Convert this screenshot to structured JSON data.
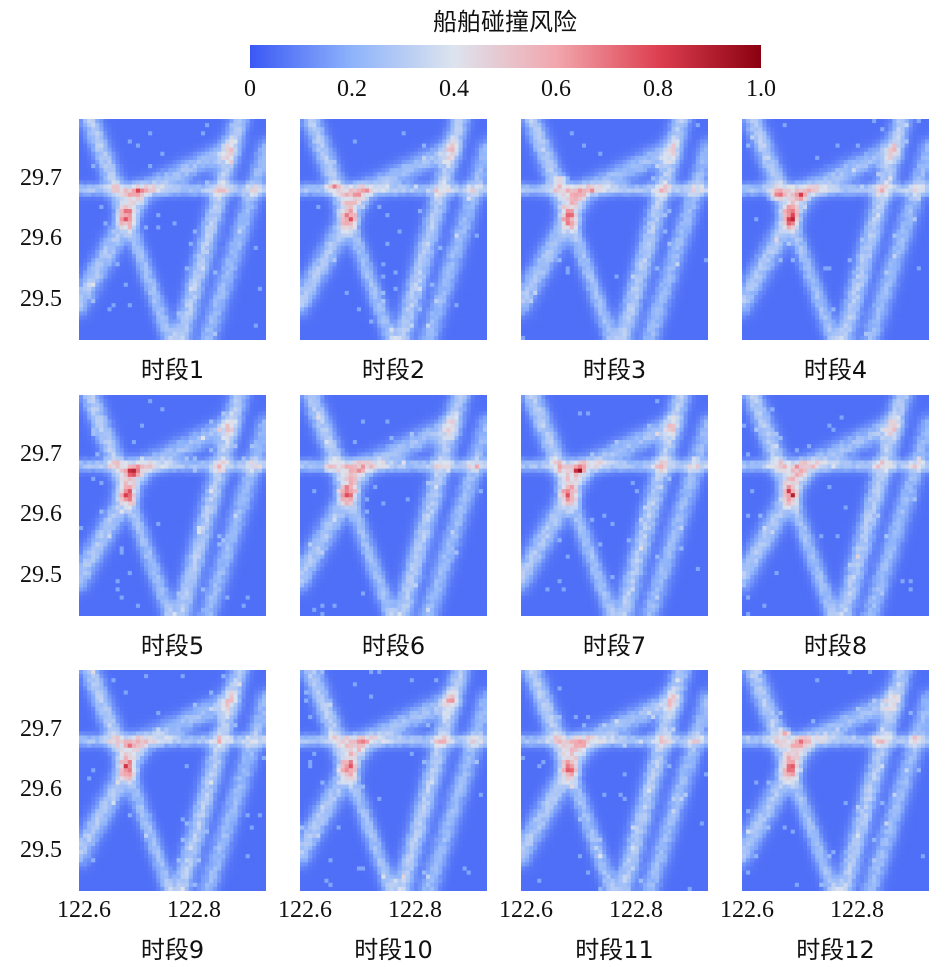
{
  "chart_data": {
    "type": "heatmap",
    "title": "",
    "colorbar": {
      "label": "船舶碰撞风险",
      "range": [
        0,
        1.0
      ],
      "ticks": [
        "0",
        "0.2",
        "0.4",
        "0.6",
        "0.8",
        "1.0"
      ],
      "colormap": "coolwarm",
      "colors": [
        "#3a58f5",
        "#8eb3fb",
        "#dde4ee",
        "#f2a6ad",
        "#dd3f50",
        "#8b0010"
      ]
    },
    "x_axis": {
      "range": [
        122.58,
        122.93
      ],
      "ticks": [
        "122.6",
        "122.8"
      ]
    },
    "y_axis": {
      "range": [
        29.43,
        29.79
      ],
      "ticks": [
        "29.7",
        "29.6",
        "29.5"
      ]
    },
    "grid": false,
    "base_risk": 0.05,
    "lanes": [
      {
        "x1": 122.6,
        "y1": 29.79,
        "x2": 122.67,
        "y2": 29.63,
        "width": 0.012,
        "risk": 0.3
      },
      {
        "x1": 122.67,
        "y1": 29.63,
        "x2": 122.75,
        "y2": 29.43,
        "width": 0.01,
        "risk": 0.24
      },
      {
        "x1": 122.69,
        "y1": 29.66,
        "x2": 122.58,
        "y2": 29.49,
        "width": 0.013,
        "risk": 0.28
      },
      {
        "x1": 122.58,
        "y1": 29.675,
        "x2": 122.93,
        "y2": 29.675,
        "width": 0.007,
        "risk": 0.26
      },
      {
        "x1": 122.68,
        "y1": 29.665,
        "x2": 122.86,
        "y2": 29.74,
        "width": 0.012,
        "risk": 0.24
      },
      {
        "x1": 122.88,
        "y1": 29.79,
        "x2": 122.77,
        "y2": 29.43,
        "width": 0.012,
        "risk": 0.3
      },
      {
        "x1": 122.93,
        "y1": 29.74,
        "x2": 122.82,
        "y2": 29.43,
        "width": 0.012,
        "risk": 0.22
      }
    ],
    "periods": [
      {
        "name": "时段1",
        "hotspots": [
          {
            "x": 122.675,
            "y": 29.668,
            "r": 0.012,
            "risk": 0.62
          },
          {
            "x": 122.65,
            "y": 29.68,
            "r": 0.008,
            "risk": 0.45
          }
        ]
      },
      {
        "name": "时段2",
        "hotspots": [
          {
            "x": 122.645,
            "y": 29.68,
            "r": 0.01,
            "risk": 0.68
          },
          {
            "x": 122.672,
            "y": 29.665,
            "r": 0.008,
            "risk": 0.5
          }
        ]
      },
      {
        "name": "时段3",
        "hotspots": [
          {
            "x": 122.652,
            "y": 29.69,
            "r": 0.012,
            "risk": 0.5
          },
          {
            "x": 122.675,
            "y": 29.675,
            "r": 0.008,
            "risk": 0.42
          }
        ]
      },
      {
        "name": "时段4",
        "hotspots": [
          {
            "x": 122.65,
            "y": 29.668,
            "r": 0.014,
            "risk": 0.72
          },
          {
            "x": 122.69,
            "y": 29.665,
            "r": 0.01,
            "risk": 0.85
          }
        ]
      },
      {
        "name": "时段5",
        "hotspots": [
          {
            "x": 122.68,
            "y": 29.665,
            "r": 0.014,
            "risk": 0.92
          },
          {
            "x": 122.64,
            "y": 29.675,
            "r": 0.008,
            "risk": 0.55
          }
        ]
      },
      {
        "name": "时段6",
        "hotspots": [
          {
            "x": 122.635,
            "y": 29.672,
            "r": 0.01,
            "risk": 0.55
          },
          {
            "x": 122.678,
            "y": 29.668,
            "r": 0.01,
            "risk": 0.62
          }
        ]
      },
      {
        "name": "时段7",
        "hotspots": [
          {
            "x": 122.688,
            "y": 29.668,
            "r": 0.01,
            "risk": 1.0
          },
          {
            "x": 122.65,
            "y": 29.672,
            "r": 0.01,
            "risk": 0.45
          }
        ]
      },
      {
        "name": "时段8",
        "hotspots": [
          {
            "x": 122.66,
            "y": 29.668,
            "r": 0.008,
            "risk": 0.45
          },
          {
            "x": 122.69,
            "y": 29.668,
            "r": 0.008,
            "risk": 0.5
          }
        ]
      },
      {
        "name": "时段9",
        "hotspots": [
          {
            "x": 122.675,
            "y": 29.668,
            "r": 0.012,
            "risk": 0.72
          }
        ]
      },
      {
        "name": "时段10",
        "hotspots": [
          {
            "x": 122.648,
            "y": 29.672,
            "r": 0.008,
            "risk": 0.4
          },
          {
            "x": 122.675,
            "y": 29.668,
            "r": 0.008,
            "risk": 0.38
          }
        ]
      },
      {
        "name": "时段11",
        "hotspots": [
          {
            "x": 122.65,
            "y": 29.675,
            "r": 0.01,
            "risk": 0.58
          },
          {
            "x": 122.678,
            "y": 29.672,
            "r": 0.01,
            "risk": 0.6
          }
        ]
      },
      {
        "name": "时段12",
        "hotspots": [
          {
            "x": 122.66,
            "y": 29.685,
            "r": 0.01,
            "risk": 0.62
          },
          {
            "x": 122.69,
            "y": 29.672,
            "r": 0.012,
            "risk": 0.72
          }
        ]
      }
    ]
  }
}
